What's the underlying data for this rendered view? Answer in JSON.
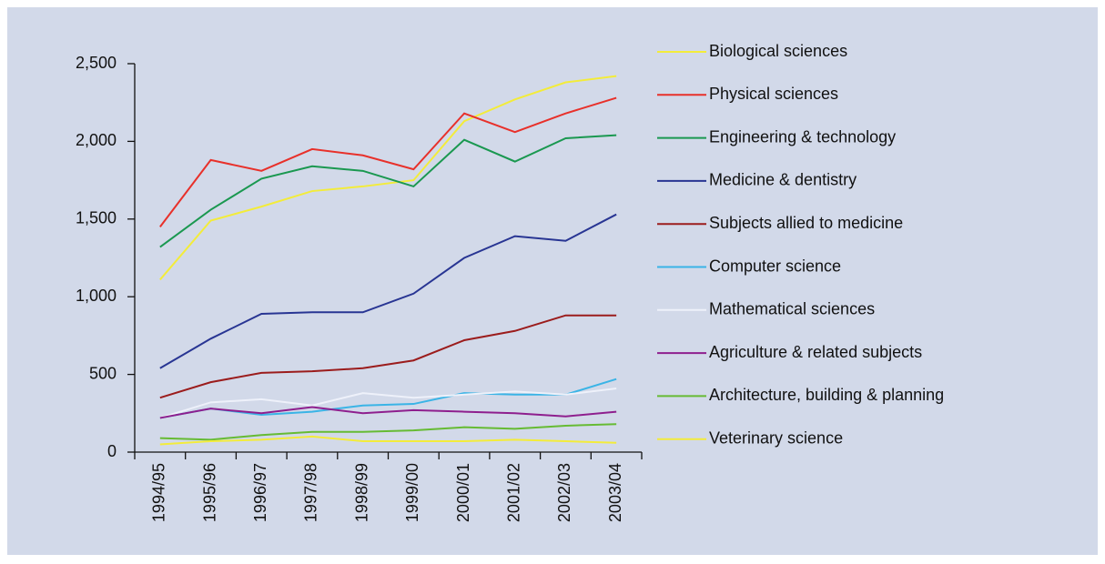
{
  "chart_data": {
    "type": "line",
    "categories": [
      "1994/95",
      "1995/96",
      "1996/97",
      "1997/98",
      "1998/99",
      "1999/00",
      "2000/01",
      "2001/02",
      "2002/03",
      "2003/04"
    ],
    "ylim": [
      0,
      2500
    ],
    "yticks": [
      0,
      500,
      {
        "value": 1000,
        "label": "1,000"
      },
      {
        "value": 1500,
        "label": "1,500"
      },
      {
        "value": 2000,
        "label": "2,000"
      },
      {
        "value": 2500,
        "label": "2,500"
      }
    ],
    "grid": false,
    "legend": "right",
    "series": [
      {
        "name": "Biological sciences",
        "color": "#f3ec3a",
        "values": [
          1110,
          1490,
          1580,
          1680,
          1710,
          1750,
          2130,
          2270,
          2380,
          2420
        ]
      },
      {
        "name": "Physical sciences",
        "color": "#e8302a",
        "values": [
          1450,
          1880,
          1810,
          1950,
          1910,
          1820,
          2180,
          2060,
          2180,
          2280
        ]
      },
      {
        "name": "Engineering & technology",
        "color": "#1a9850",
        "values": [
          1320,
          1560,
          1760,
          1840,
          1810,
          1710,
          2010,
          1870,
          2020,
          2040
        ]
      },
      {
        "name": "Medicine & dentistry",
        "color": "#283593",
        "values": [
          540,
          730,
          890,
          900,
          900,
          1020,
          1250,
          1390,
          1360,
          1530
        ]
      },
      {
        "name": "Subjects allied to medicine",
        "color": "#9b1c1c",
        "values": [
          350,
          450,
          510,
          520,
          540,
          590,
          720,
          780,
          880,
          880
        ]
      },
      {
        "name": "Computer science",
        "color": "#3ab4e6",
        "values": [
          220,
          280,
          240,
          260,
          300,
          310,
          380,
          370,
          370,
          470
        ]
      },
      {
        "name": "Mathematical sciences",
        "color": "#eef1fa",
        "values": [
          220,
          320,
          340,
          300,
          380,
          350,
          370,
          390,
          370,
          410
        ]
      },
      {
        "name": "Agriculture & related subjects",
        "color": "#8e1f8e",
        "values": [
          220,
          280,
          250,
          290,
          250,
          270,
          260,
          250,
          230,
          260
        ]
      },
      {
        "name": "Architecture, building & planning",
        "color": "#66bb33",
        "values": [
          90,
          80,
          110,
          130,
          130,
          140,
          160,
          150,
          170,
          180
        ]
      },
      {
        "name": "Veterinary science",
        "color": "#f3ec3a",
        "values": [
          50,
          70,
          80,
          100,
          70,
          70,
          70,
          80,
          70,
          60
        ]
      }
    ]
  }
}
